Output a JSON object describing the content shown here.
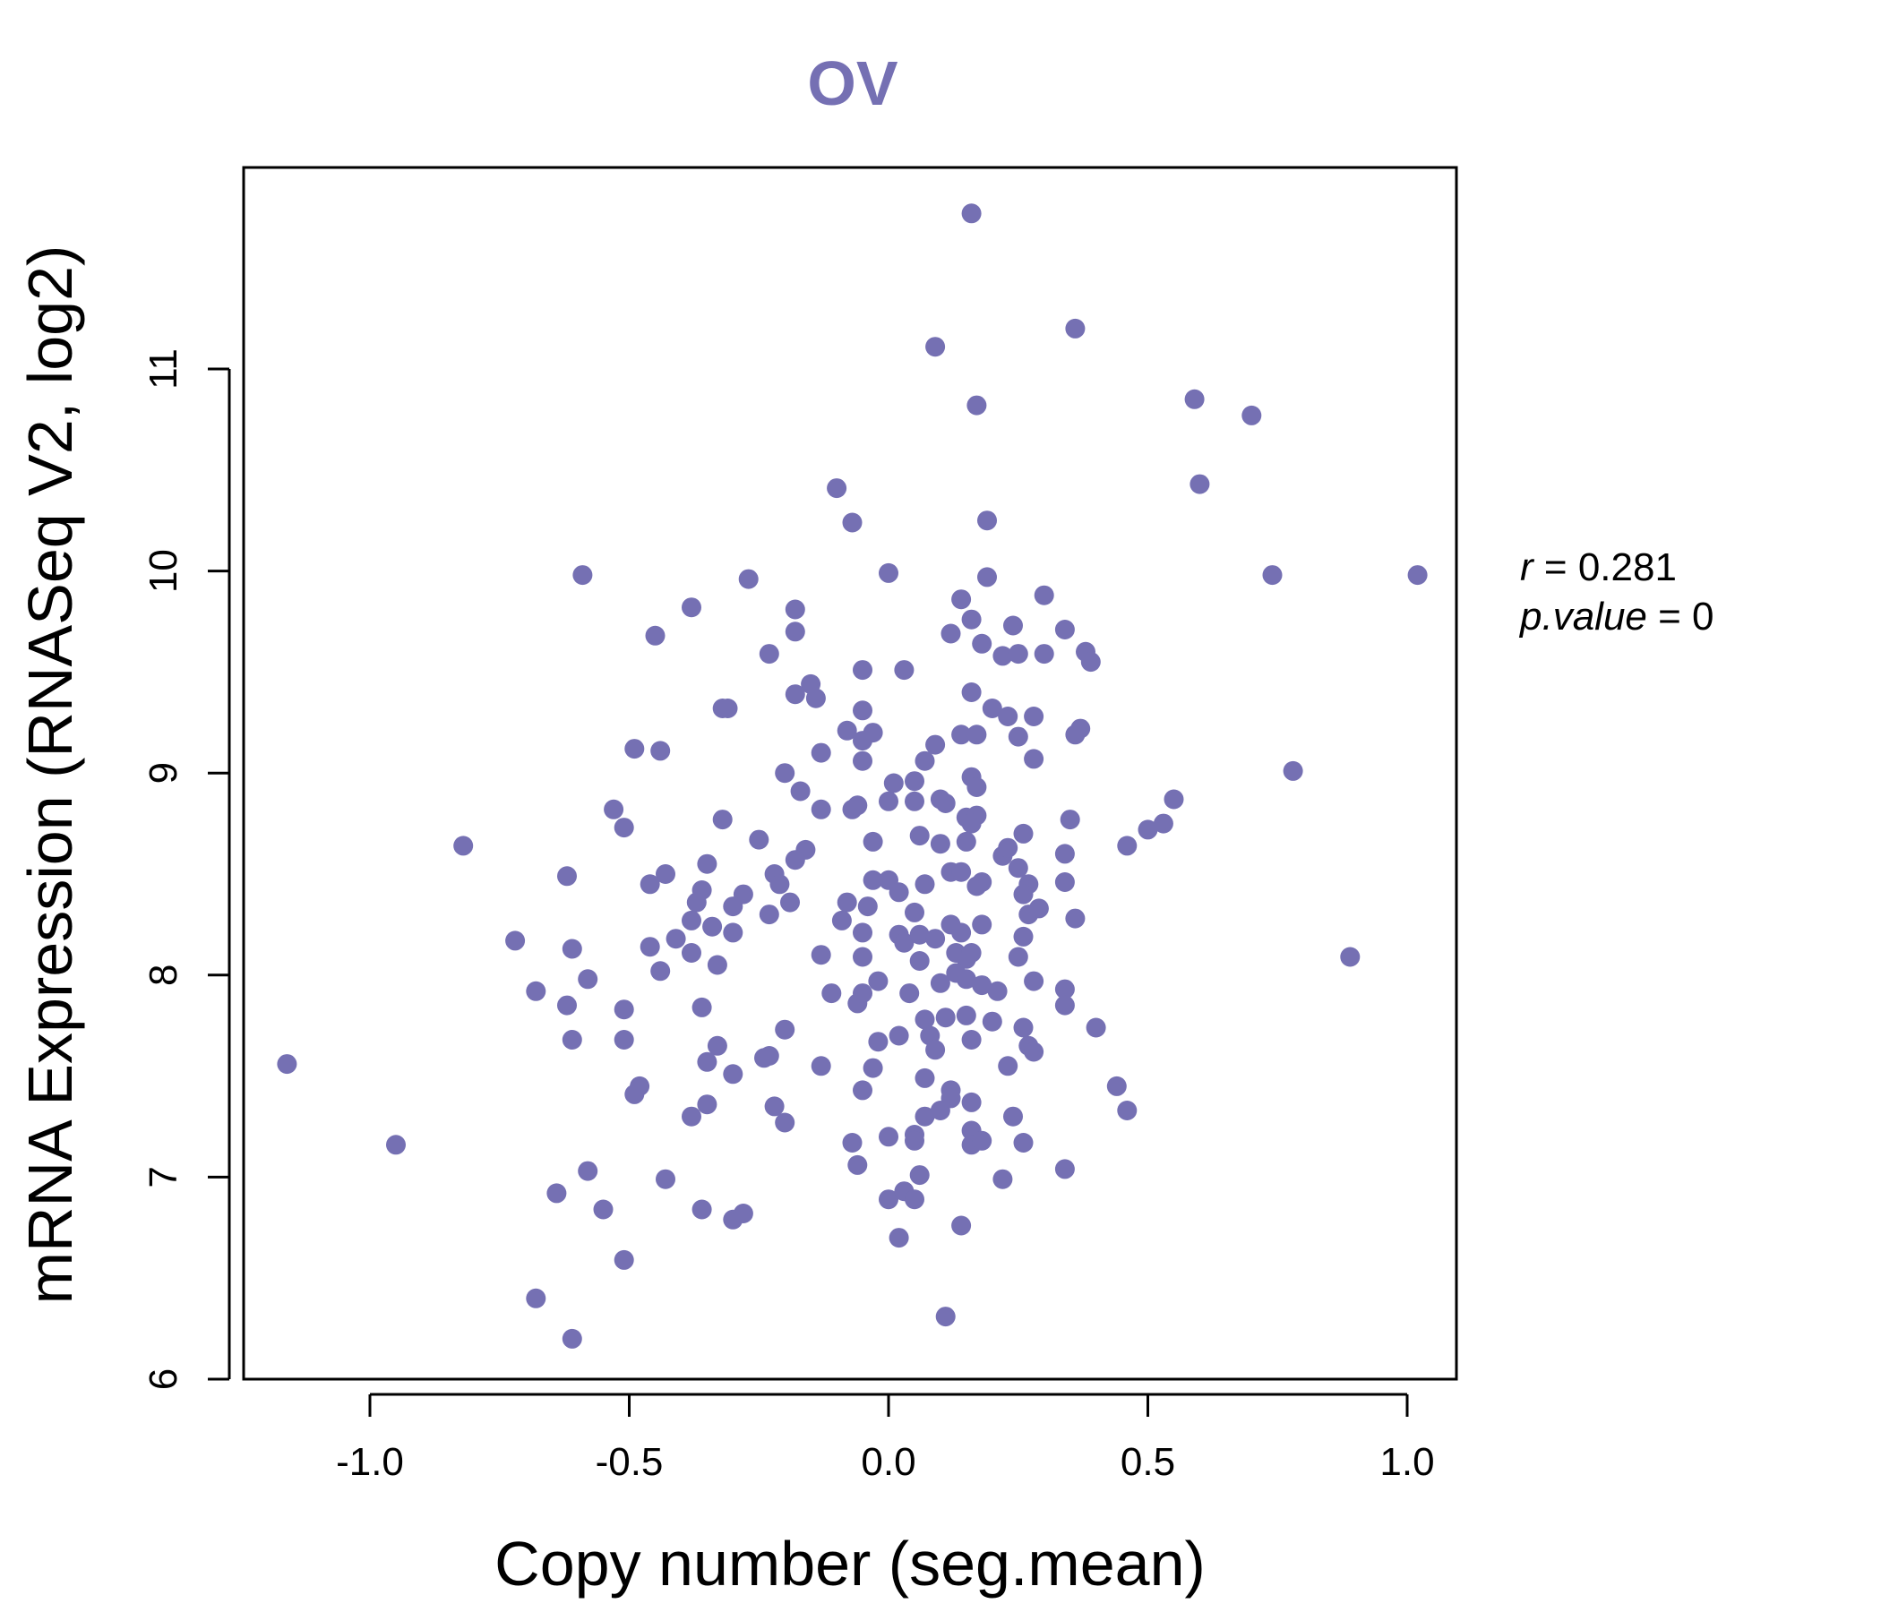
{
  "colors": {
    "point": "#7570B3",
    "title": "#7570B3",
    "axis": "#000000"
  },
  "chart_data": {
    "type": "scatter",
    "title": "OV",
    "xlabel": "Copy number (seg.mean)",
    "ylabel": "mRNA Expression (RNASeq V2, log2)",
    "xlim": [
      -1.25,
      1.1
    ],
    "ylim": [
      6,
      12
    ],
    "xticks": [
      -1.0,
      -0.5,
      0.0,
      0.5,
      1.0
    ],
    "xtick_labels": [
      "-1.0",
      "-0.5",
      "0.0",
      "0.5",
      "1.0"
    ],
    "yticks": [
      6,
      7,
      8,
      9,
      10,
      11
    ],
    "ytick_labels": [
      "6",
      "7",
      "8",
      "9",
      "10",
      "11"
    ],
    "annotation": {
      "r_label": "r",
      "r_value": "0.281",
      "p_label": "p.value",
      "p_value": "0"
    },
    "points": [
      [
        0.16,
        11.77
      ],
      [
        0.09,
        11.11
      ],
      [
        0.36,
        11.2
      ],
      [
        0.17,
        10.82
      ],
      [
        0.59,
        10.85
      ],
      [
        0.7,
        10.77
      ],
      [
        0.6,
        10.43
      ],
      [
        -0.1,
        10.41
      ],
      [
        -0.07,
        10.24
      ],
      [
        0.19,
        10.25
      ],
      [
        -0.59,
        9.98
      ],
      [
        -0.27,
        9.96
      ],
      [
        0.0,
        9.99
      ],
      [
        0.19,
        9.97
      ],
      [
        0.74,
        9.98
      ],
      [
        1.02,
        9.98
      ],
      [
        -0.38,
        9.82
      ],
      [
        -0.18,
        9.81
      ],
      [
        0.14,
        9.86
      ],
      [
        0.3,
        9.88
      ],
      [
        0.16,
        9.76
      ],
      [
        -0.45,
        9.68
      ],
      [
        -0.18,
        9.7
      ],
      [
        0.12,
        9.69
      ],
      [
        0.24,
        9.73
      ],
      [
        0.34,
        9.71
      ],
      [
        0.18,
        9.64
      ],
      [
        -0.23,
        9.59
      ],
      [
        0.22,
        9.58
      ],
      [
        0.25,
        9.59
      ],
      [
        0.3,
        9.59
      ],
      [
        0.38,
        9.6
      ],
      [
        0.39,
        9.55
      ],
      [
        -0.05,
        9.51
      ],
      [
        0.03,
        9.51
      ],
      [
        -0.15,
        9.44
      ],
      [
        -0.18,
        9.39
      ],
      [
        -0.14,
        9.37
      ],
      [
        0.16,
        9.4
      ],
      [
        -0.32,
        9.32
      ],
      [
        -0.31,
        9.32
      ],
      [
        -0.05,
        9.31
      ],
      [
        0.2,
        9.32
      ],
      [
        0.23,
        9.28
      ],
      [
        0.28,
        9.28
      ],
      [
        -0.08,
        9.21
      ],
      [
        -0.05,
        9.16
      ],
      [
        -0.03,
        9.2
      ],
      [
        0.14,
        9.19
      ],
      [
        0.17,
        9.19
      ],
      [
        0.25,
        9.18
      ],
      [
        0.36,
        9.19
      ],
      [
        0.37,
        9.22
      ],
      [
        -0.49,
        9.12
      ],
      [
        -0.44,
        9.11
      ],
      [
        -0.13,
        9.1
      ],
      [
        0.09,
        9.14
      ],
      [
        -0.05,
        9.06
      ],
      [
        0.07,
        9.06
      ],
      [
        0.28,
        9.07
      ],
      [
        -0.2,
        9.0
      ],
      [
        0.01,
        8.95
      ],
      [
        0.05,
        8.96
      ],
      [
        0.16,
        8.98
      ],
      [
        0.17,
        8.93
      ],
      [
        0.78,
        9.01
      ],
      [
        -0.17,
        8.91
      ],
      [
        -0.07,
        8.82
      ],
      [
        -0.06,
        8.84
      ],
      [
        0.0,
        8.86
      ],
      [
        0.05,
        8.86
      ],
      [
        0.1,
        8.87
      ],
      [
        0.11,
        8.85
      ],
      [
        0.15,
        8.78
      ],
      [
        0.17,
        8.79
      ],
      [
        0.35,
        8.77
      ],
      [
        0.55,
        8.87
      ],
      [
        -0.53,
        8.82
      ],
      [
        -0.51,
        8.73
      ],
      [
        -0.32,
        8.77
      ],
      [
        -0.13,
        8.82
      ],
      [
        0.06,
        8.69
      ],
      [
        0.15,
        8.66
      ],
      [
        0.16,
        8.75
      ],
      [
        0.26,
        8.7
      ],
      [
        0.5,
        8.72
      ],
      [
        0.53,
        8.75
      ],
      [
        -0.82,
        8.64
      ],
      [
        -0.25,
        8.67
      ],
      [
        -0.16,
        8.62
      ],
      [
        -0.18,
        8.57
      ],
      [
        -0.03,
        8.66
      ],
      [
        0.1,
        8.65
      ],
      [
        0.22,
        8.59
      ],
      [
        0.23,
        8.63
      ],
      [
        0.34,
        8.6
      ],
      [
        0.46,
        8.64
      ],
      [
        -0.62,
        8.49
      ],
      [
        -0.43,
        8.5
      ],
      [
        -0.35,
        8.55
      ],
      [
        -0.22,
        8.5
      ],
      [
        -0.21,
        8.45
      ],
      [
        -0.19,
        8.36
      ],
      [
        0.0,
        8.47
      ],
      [
        0.07,
        8.45
      ],
      [
        0.12,
        8.51
      ],
      [
        0.14,
        8.51
      ],
      [
        0.18,
        8.46
      ],
      [
        0.25,
        8.53
      ],
      [
        0.27,
        8.45
      ],
      [
        0.34,
        8.46
      ],
      [
        -0.46,
        8.45
      ],
      [
        -0.36,
        8.42
      ],
      [
        -0.37,
        8.36
      ],
      [
        -0.28,
        8.4
      ],
      [
        -0.3,
        8.34
      ],
      [
        -0.08,
        8.36
      ],
      [
        -0.04,
        8.34
      ],
      [
        -0.03,
        8.47
      ],
      [
        0.02,
        8.41
      ],
      [
        0.05,
        8.31
      ],
      [
        0.17,
        8.44
      ],
      [
        0.26,
        8.4
      ],
      [
        0.27,
        8.3
      ],
      [
        0.29,
        8.33
      ],
      [
        0.36,
        8.28
      ],
      [
        -0.38,
        8.27
      ],
      [
        -0.34,
        8.24
      ],
      [
        -0.3,
        8.21
      ],
      [
        -0.23,
        8.3
      ],
      [
        -0.09,
        8.27
      ],
      [
        -0.05,
        8.21
      ],
      [
        0.02,
        8.2
      ],
      [
        0.03,
        8.16
      ],
      [
        0.06,
        8.2
      ],
      [
        0.09,
        8.18
      ],
      [
        0.12,
        8.25
      ],
      [
        0.14,
        8.21
      ],
      [
        0.18,
        8.25
      ],
      [
        0.26,
        8.19
      ],
      [
        -0.72,
        8.17
      ],
      [
        -0.61,
        8.13
      ],
      [
        -0.46,
        8.14
      ],
      [
        -0.41,
        8.18
      ],
      [
        -0.38,
        8.11
      ],
      [
        -0.13,
        8.1
      ],
      [
        -0.05,
        8.09
      ],
      [
        0.06,
        8.07
      ],
      [
        0.13,
        8.11
      ],
      [
        0.15,
        8.08
      ],
      [
        0.16,
        8.11
      ],
      [
        0.25,
        8.09
      ],
      [
        0.89,
        8.09
      ],
      [
        -0.58,
        7.98
      ],
      [
        -0.44,
        8.02
      ],
      [
        -0.33,
        8.05
      ],
      [
        -0.02,
        7.97
      ],
      [
        0.04,
        7.91
      ],
      [
        0.1,
        7.96
      ],
      [
        0.13,
        8.01
      ],
      [
        0.15,
        7.98
      ],
      [
        0.18,
        7.95
      ],
      [
        0.21,
        7.92
      ],
      [
        0.28,
        7.97
      ],
      [
        0.34,
        7.93
      ],
      [
        -0.68,
        7.92
      ],
      [
        -0.62,
        7.85
      ],
      [
        -0.51,
        7.83
      ],
      [
        -0.36,
        7.84
      ],
      [
        -0.11,
        7.91
      ],
      [
        -0.06,
        7.86
      ],
      [
        -0.05,
        7.91
      ],
      [
        0.07,
        7.78
      ],
      [
        0.11,
        7.79
      ],
      [
        0.15,
        7.8
      ],
      [
        0.2,
        7.77
      ],
      [
        0.26,
        7.74
      ],
      [
        0.34,
        7.85
      ],
      [
        0.4,
        7.74
      ],
      [
        -0.61,
        7.68
      ],
      [
        -0.51,
        7.68
      ],
      [
        -0.33,
        7.65
      ],
      [
        -0.2,
        7.73
      ],
      [
        -0.02,
        7.67
      ],
      [
        0.02,
        7.7
      ],
      [
        0.08,
        7.7
      ],
      [
        0.09,
        7.63
      ],
      [
        0.16,
        7.68
      ],
      [
        0.27,
        7.65
      ],
      [
        0.28,
        7.62
      ],
      [
        -1.16,
        7.56
      ],
      [
        -0.35,
        7.57
      ],
      [
        -0.24,
        7.59
      ],
      [
        -0.23,
        7.6
      ],
      [
        -0.13,
        7.55
      ],
      [
        -0.03,
        7.54
      ],
      [
        0.07,
        7.49
      ],
      [
        0.23,
        7.55
      ],
      [
        -0.48,
        7.45
      ],
      [
        -0.49,
        7.41
      ],
      [
        -0.3,
        7.51
      ],
      [
        -0.05,
        7.43
      ],
      [
        0.12,
        7.43
      ],
      [
        0.44,
        7.45
      ],
      [
        -0.35,
        7.36
      ],
      [
        -0.38,
        7.3
      ],
      [
        -0.22,
        7.35
      ],
      [
        -0.2,
        7.27
      ],
      [
        0.07,
        7.3
      ],
      [
        0.1,
        7.33
      ],
      [
        0.12,
        7.39
      ],
      [
        0.16,
        7.37
      ],
      [
        0.24,
        7.3
      ],
      [
        0.46,
        7.33
      ],
      [
        -0.95,
        7.16
      ],
      [
        -0.07,
        7.17
      ],
      [
        0.0,
        7.2
      ],
      [
        0.05,
        7.21
      ],
      [
        0.05,
        7.18
      ],
      [
        0.16,
        7.23
      ],
      [
        0.16,
        7.16
      ],
      [
        0.18,
        7.18
      ],
      [
        0.26,
        7.17
      ],
      [
        -0.58,
        7.03
      ],
      [
        -0.43,
        6.99
      ],
      [
        -0.06,
        7.06
      ],
      [
        0.06,
        7.01
      ],
      [
        0.22,
        6.99
      ],
      [
        0.34,
        7.04
      ],
      [
        -0.64,
        6.92
      ],
      [
        -0.55,
        6.84
      ],
      [
        -0.36,
        6.84
      ],
      [
        -0.3,
        6.79
      ],
      [
        -0.28,
        6.82
      ],
      [
        0.0,
        6.89
      ],
      [
        0.03,
        6.93
      ],
      [
        0.05,
        6.89
      ],
      [
        0.02,
        6.7
      ],
      [
        0.14,
        6.76
      ],
      [
        -0.51,
        6.59
      ],
      [
        -0.68,
        6.4
      ],
      [
        -0.61,
        6.2
      ],
      [
        0.11,
        6.31
      ]
    ]
  }
}
